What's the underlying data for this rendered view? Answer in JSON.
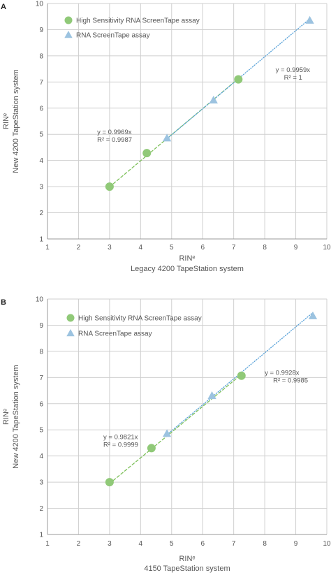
{
  "chart_data": [
    {
      "type": "scatter",
      "panel_label": "A",
      "xlabel_lines": [
        "RINᵉ",
        "Legacy 4200 TapeStation system"
      ],
      "ylabel_lines": [
        "RINᵉ",
        "New 4200 TapeStation system"
      ],
      "xlim": [
        1,
        10
      ],
      "ylim": [
        1,
        10
      ],
      "xticks": [
        1,
        2,
        3,
        4,
        5,
        6,
        7,
        8,
        9,
        10
      ],
      "yticks": [
        1,
        2,
        3,
        4,
        5,
        6,
        7,
        8,
        9,
        10
      ],
      "grid": true,
      "legend_position": "top-left",
      "series": [
        {
          "name": "High Sensitivity RNA ScreenTape assay",
          "marker": "circle",
          "color": "#90c978",
          "line_color": "#7dc05a",
          "line_style": "dashed",
          "points": [
            [
              3.0,
              3.0
            ],
            [
              4.2,
              4.28
            ],
            [
              7.15,
              7.1
            ]
          ],
          "fit_slope": 0.9969,
          "equation": "y = 0.9969x",
          "r2": "R² = 0.9987",
          "equation_anchor": [
            2.6,
            5.0
          ]
        },
        {
          "name": "RNA ScreenTape assay",
          "marker": "triangle",
          "color": "#9cc3e0",
          "line_color": "#5ba3d9",
          "line_style": "dotted",
          "points": [
            [
              4.85,
              4.85
            ],
            [
              6.35,
              6.3
            ],
            [
              9.45,
              9.35
            ]
          ],
          "fit_slope": 0.9959,
          "equation": "y = 0.9959x",
          "r2": "R² = 1",
          "equation_anchor": [
            8.35,
            7.38
          ]
        }
      ]
    },
    {
      "type": "scatter",
      "panel_label": "B",
      "xlabel_lines": [
        "RINᵉ",
        "4150 TapeStation system"
      ],
      "ylabel_lines": [
        "RINᵉ",
        "New 4200 TapeStation system"
      ],
      "xlim": [
        1,
        10
      ],
      "ylim": [
        1,
        10
      ],
      "xticks": [
        1,
        2,
        3,
        4,
        5,
        6,
        7,
        8,
        9,
        10
      ],
      "yticks": [
        1,
        2,
        3,
        4,
        5,
        6,
        7,
        8,
        9,
        10
      ],
      "grid": true,
      "legend_position": "top-left",
      "series": [
        {
          "name": "High Sensitivity RNA ScreenTape assay",
          "marker": "circle",
          "color": "#90c978",
          "line_color": "#7dc05a",
          "line_style": "dashed",
          "points": [
            [
              3.0,
              3.0
            ],
            [
              4.35,
              4.3
            ],
            [
              7.25,
              7.07
            ]
          ],
          "fit_slope": 0.9821,
          "equation": "y = 0.9821x",
          "r2": "R² = 0.9999",
          "equation_anchor": [
            2.8,
            4.65
          ]
        },
        {
          "name": "RNA ScreenTape assay",
          "marker": "triangle",
          "color": "#9cc3e0",
          "line_color": "#5ba3d9",
          "line_style": "dotted",
          "points": [
            [
              4.85,
              4.85
            ],
            [
              6.3,
              6.3
            ],
            [
              9.55,
              9.35
            ]
          ],
          "fit_slope": 0.9928,
          "equation": "y = 0.9928x",
          "r2": "R² = 0.9985",
          "equation_anchor": [
            8.0,
            7.1
          ]
        }
      ]
    }
  ]
}
